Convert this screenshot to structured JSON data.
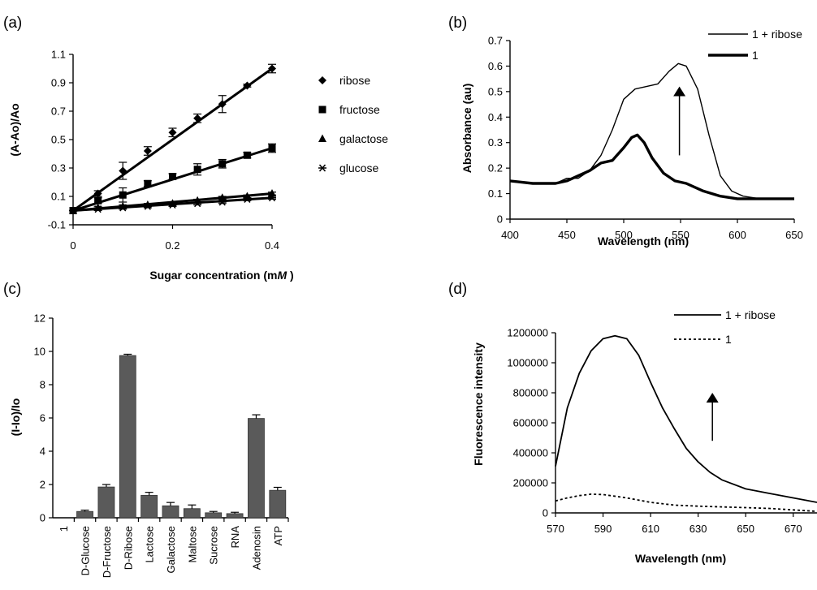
{
  "chart_data": [
    {
      "panel": "(a)",
      "type": "scatter",
      "xlabel": "Sugar concentration (mM)",
      "xlabel_parts": [
        "Sugar concentration (m",
        "M",
        " )"
      ],
      "ylabel": "(A-Ao)/Ao",
      "xlim": [
        0,
        0.4
      ],
      "ylim": [
        -0.1,
        1.1
      ],
      "xticks": [
        "0",
        "0.2",
        "0.4"
      ],
      "xtick_values": [
        0,
        0.2,
        0.4
      ],
      "yticks": [
        "-0.1",
        "0.1",
        "0.3",
        "0.5",
        "0.7",
        "0.9",
        "1.1"
      ],
      "ytick_values": [
        -0.1,
        0.1,
        0.3,
        0.5,
        0.7,
        0.9,
        1.1
      ],
      "x": [
        0,
        0.05,
        0.1,
        0.15,
        0.2,
        0.25,
        0.3,
        0.35,
        0.4
      ],
      "series": [
        {
          "name": "ribose",
          "marker": "diamond",
          "values": [
            0,
            0.12,
            0.28,
            0.42,
            0.55,
            0.65,
            0.75,
            0.88,
            1.0
          ],
          "errors": [
            0,
            0.02,
            0.06,
            0.03,
            0.03,
            0.03,
            0.06,
            0.01,
            0.03
          ],
          "fit": [
            0,
            1.0
          ]
        },
        {
          "name": "fructose",
          "marker": "square",
          "values": [
            0,
            0.07,
            0.11,
            0.19,
            0.24,
            0.29,
            0.33,
            0.39,
            0.44
          ],
          "errors": [
            0,
            0.02,
            0.05,
            0.02,
            0.02,
            0.04,
            0.03,
            0.02,
            0.03
          ],
          "fit": [
            0,
            0.44
          ]
        },
        {
          "name": "galactose",
          "marker": "triangle",
          "values": [
            0,
            0.02,
            0.03,
            0.04,
            0.05,
            0.07,
            0.09,
            0.1,
            0.12
          ],
          "errors": [
            0,
            0.01,
            0.01,
            0.01,
            0.01,
            0.01,
            0.01,
            0.01,
            0.01
          ],
          "fit": [
            0,
            0.12
          ]
        },
        {
          "name": "glucose",
          "marker": "asterisk",
          "values": [
            0,
            0.01,
            0.02,
            0.03,
            0.04,
            0.05,
            0.06,
            0.08,
            0.09
          ],
          "errors": [
            0,
            0.01,
            0.01,
            0.01,
            0.01,
            0.01,
            0.01,
            0.01,
            0.01
          ],
          "fit": [
            0,
            0.09
          ]
        }
      ]
    },
    {
      "panel": "(b)",
      "type": "line",
      "xlabel": "Wavelength (nm)",
      "ylabel": "Absorbance (au)",
      "xlim": [
        400,
        650
      ],
      "ylim": [
        0,
        0.7
      ],
      "xticks": [
        "400",
        "450",
        "500",
        "550",
        "600",
        "650"
      ],
      "xtick_values": [
        400,
        450,
        500,
        550,
        600,
        650
      ],
      "yticks": [
        "0",
        "0.1",
        "0.2",
        "0.3",
        "0.4",
        "0.5",
        "0.6",
        "0.7"
      ],
      "ytick_values": [
        0,
        0.1,
        0.2,
        0.3,
        0.4,
        0.5,
        0.6,
        0.7
      ],
      "arrow": {
        "x": 549,
        "y_from": 0.25,
        "y_to": 0.52
      },
      "series": [
        {
          "name": "1 + ribose",
          "width": "thin",
          "x": [
            400,
            420,
            440,
            450,
            460,
            470,
            480,
            490,
            500,
            510,
            520,
            530,
            540,
            548,
            555,
            565,
            575,
            585,
            595,
            605,
            620,
            635,
            650
          ],
          "y": [
            0.15,
            0.14,
            0.14,
            0.16,
            0.16,
            0.19,
            0.25,
            0.35,
            0.47,
            0.51,
            0.52,
            0.53,
            0.58,
            0.61,
            0.6,
            0.51,
            0.33,
            0.17,
            0.11,
            0.09,
            0.08,
            0.08,
            0.08
          ]
        },
        {
          "name": "1",
          "width": "thick",
          "x": [
            400,
            420,
            440,
            450,
            460,
            470,
            480,
            490,
            500,
            507,
            512,
            518,
            525,
            535,
            545,
            555,
            570,
            585,
            600,
            620,
            635,
            650
          ],
          "y": [
            0.15,
            0.14,
            0.14,
            0.15,
            0.17,
            0.19,
            0.22,
            0.23,
            0.28,
            0.32,
            0.33,
            0.3,
            0.24,
            0.18,
            0.15,
            0.14,
            0.11,
            0.09,
            0.08,
            0.08,
            0.08,
            0.08
          ]
        }
      ]
    },
    {
      "panel": "(c)",
      "type": "bar",
      "ylabel": "(I-Io)/Io",
      "ylim": [
        0,
        12
      ],
      "yticks": [
        "0",
        "2",
        "4",
        "6",
        "8",
        "10",
        "12"
      ],
      "ytick_values": [
        0,
        2,
        4,
        6,
        8,
        10,
        12
      ],
      "categories": [
        "1",
        "D-Glucose",
        "D-Fructose",
        "D-Ribose",
        "Lactose",
        "Galactose",
        "Maltose",
        "Sucrose",
        "RNA",
        "Adenosin",
        "ATP"
      ],
      "values": [
        0,
        0.38,
        1.85,
        9.75,
        1.35,
        0.72,
        0.55,
        0.3,
        0.25,
        5.97,
        1.65
      ],
      "errors": [
        0,
        0.08,
        0.15,
        0.08,
        0.18,
        0.2,
        0.22,
        0.08,
        0.08,
        0.22,
        0.18
      ]
    },
    {
      "panel": "(d)",
      "type": "line",
      "xlabel": "Wavelength (nm)",
      "ylabel": "Fluorescence intensity",
      "xlim": [
        570,
        680
      ],
      "ylim": [
        0,
        1200000
      ],
      "xticks": [
        "570",
        "590",
        "610",
        "630",
        "650",
        "670"
      ],
      "xtick_values": [
        570,
        590,
        610,
        630,
        650,
        670
      ],
      "yticks": [
        "0",
        "200000",
        "400000",
        "600000",
        "800000",
        "1000000",
        "1200000"
      ],
      "ytick_values": [
        0,
        200000,
        400000,
        600000,
        800000,
        1000000,
        1200000
      ],
      "arrow": {
        "x": 636,
        "y_from": 480000,
        "y_to": 800000
      },
      "series": [
        {
          "name": "1 + ribose",
          "style": "solid",
          "x": [
            570,
            575,
            580,
            585,
            590,
            595,
            600,
            605,
            610,
            615,
            620,
            625,
            630,
            635,
            640,
            650,
            660,
            670,
            680
          ],
          "y": [
            310000,
            700000,
            930000,
            1080000,
            1160000,
            1180000,
            1160000,
            1050000,
            870000,
            700000,
            560000,
            430000,
            340000,
            270000,
            220000,
            160000,
            130000,
            100000,
            70000
          ]
        },
        {
          "name": "1",
          "style": "dashed",
          "x": [
            570,
            575,
            580,
            585,
            590,
            600,
            610,
            620,
            630,
            640,
            650,
            660,
            670,
            680
          ],
          "y": [
            80000,
            100000,
            115000,
            125000,
            122000,
            100000,
            70000,
            52000,
            45000,
            40000,
            35000,
            30000,
            20000,
            10000
          ]
        }
      ]
    }
  ]
}
